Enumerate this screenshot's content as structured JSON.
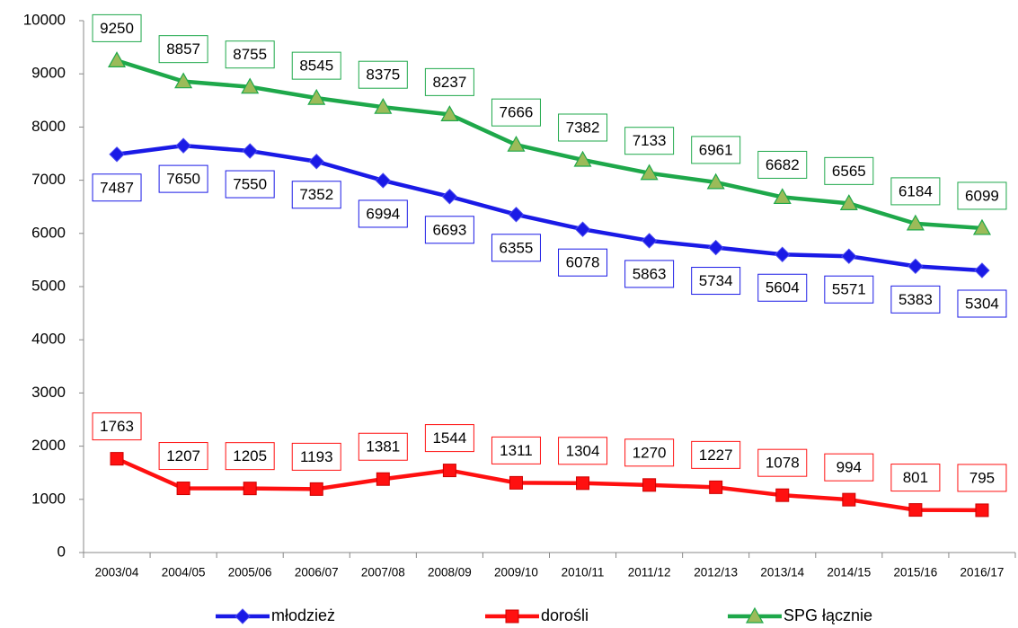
{
  "chart_data": {
    "type": "line",
    "categories": [
      "2003/04",
      "2004/05",
      "2005/06",
      "2006/07",
      "2007/08",
      "2008/09",
      "2009/10",
      "2010/11",
      "2011/12",
      "2012/13",
      "2013/14",
      "2014/15",
      "2015/16",
      "2016/17"
    ],
    "series": [
      {
        "name": "młodzież",
        "color": "#1a1ae6",
        "marker": "diamond",
        "values": [
          7487,
          7650,
          7550,
          7352,
          6994,
          6693,
          6355,
          6078,
          5863,
          5734,
          5604,
          5571,
          5383,
          5304
        ]
      },
      {
        "name": "dorośli",
        "color": "#ff1010",
        "marker": "square",
        "values": [
          1763,
          1207,
          1205,
          1193,
          1381,
          1544,
          1311,
          1304,
          1270,
          1227,
          1078,
          994,
          801,
          795
        ]
      },
      {
        "name": "SPG łącznie",
        "color": "#1ea84a",
        "marker": "triangle",
        "values": [
          9250,
          8857,
          8755,
          8545,
          8375,
          8237,
          7666,
          7382,
          7133,
          6961,
          6682,
          6565,
          6184,
          6099
        ]
      }
    ],
    "ylim": [
      0,
      10000
    ],
    "yticks": [
      0,
      1000,
      2000,
      3000,
      4000,
      5000,
      6000,
      7000,
      8000,
      9000,
      10000
    ],
    "legend": "bottom"
  }
}
